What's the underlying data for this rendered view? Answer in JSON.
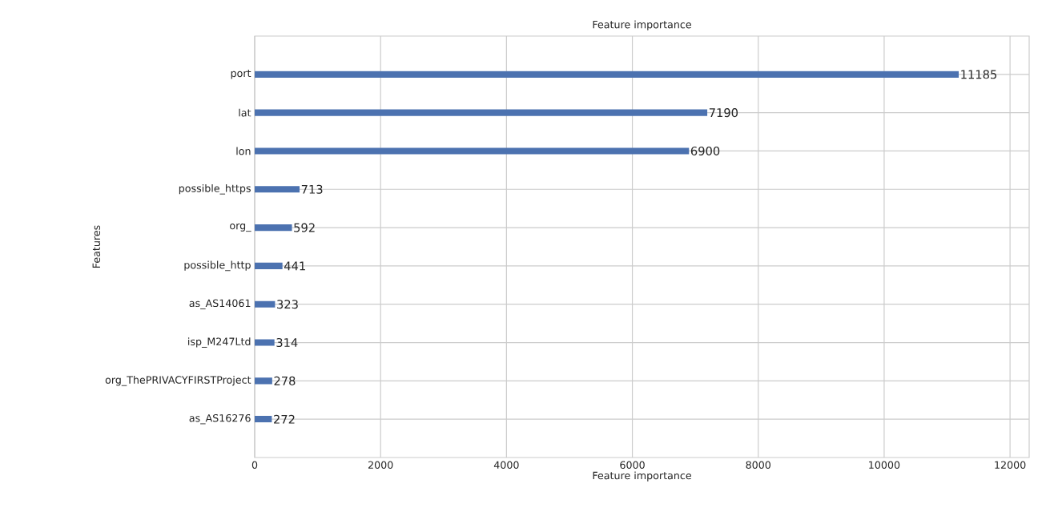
{
  "chart_data": {
    "type": "bar",
    "orientation": "horizontal",
    "title": "Feature importance",
    "xlabel": "Feature importance",
    "ylabel": "Features",
    "categories": [
      "port",
      "lat",
      "lon",
      "possible_https",
      "org_",
      "possible_http",
      "as_AS14061",
      "isp_M247Ltd",
      "org_ThePRIVACYFIRSTProject",
      "as_AS16276"
    ],
    "values": [
      11185,
      7190,
      6900,
      713,
      592,
      441,
      323,
      314,
      278,
      272
    ],
    "color": "#4c72b0",
    "data_labels": true,
    "grid": true,
    "xlim": [
      0,
      12304
    ],
    "xticks": [
      0,
      2000,
      4000,
      6000,
      8000,
      10000,
      12000
    ]
  }
}
